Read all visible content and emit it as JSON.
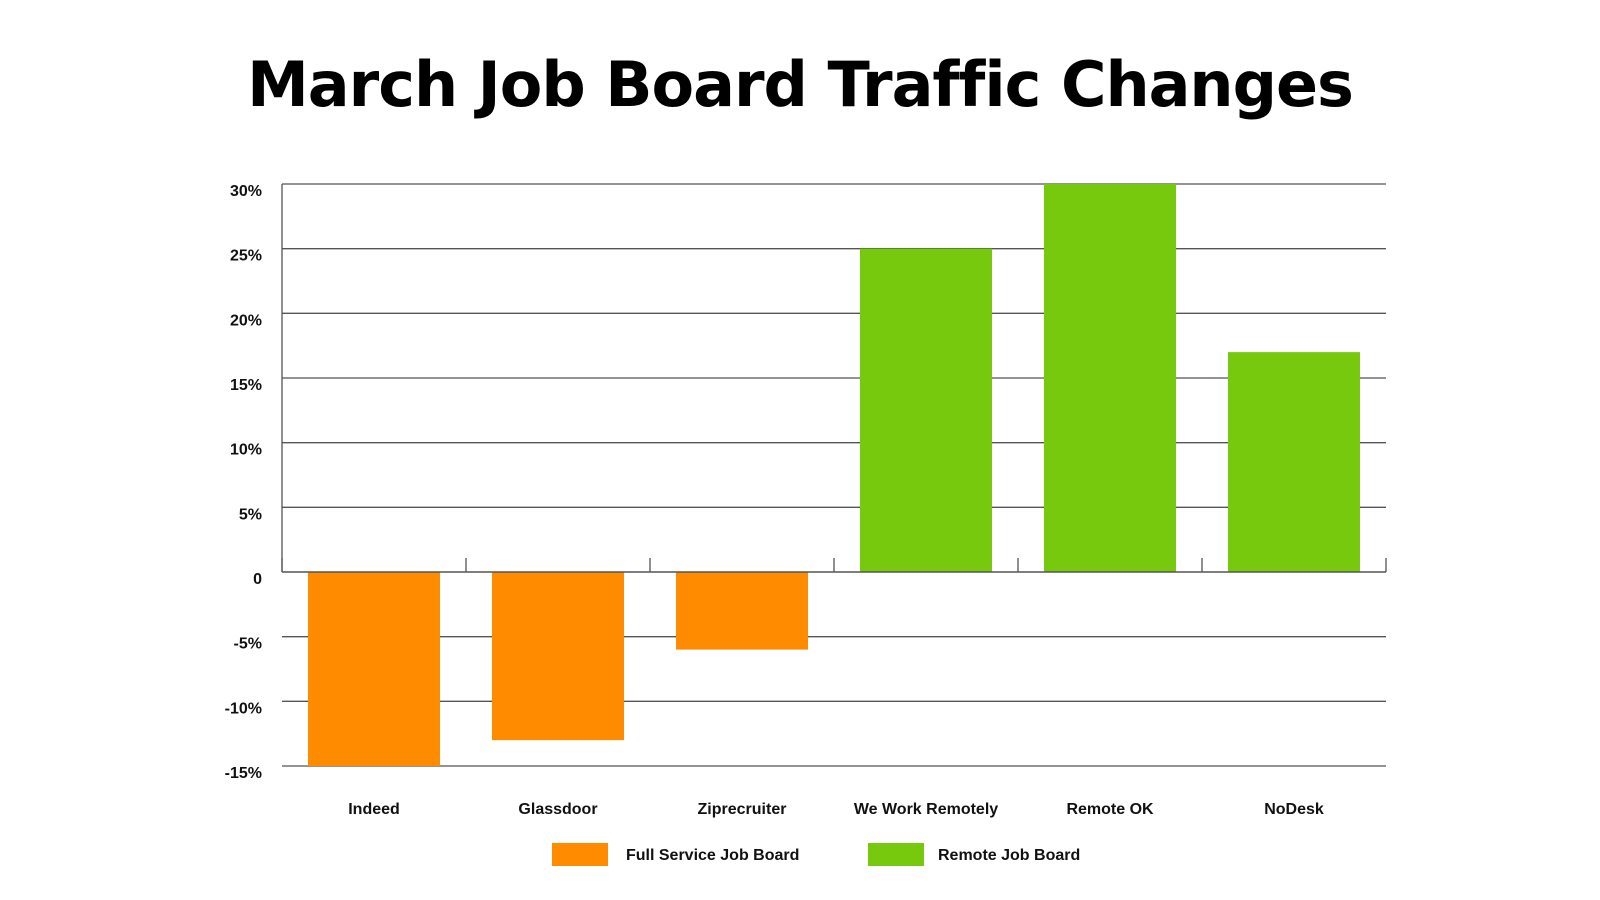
{
  "chart_data": {
    "type": "bar",
    "title": "March Job Board Traffic Changes",
    "xlabel": "",
    "ylabel": "",
    "categories": [
      "Indeed",
      "Glassdoor",
      "Ziprecruiter",
      "We Work Remotely",
      "Remote OK",
      "NoDesk"
    ],
    "values": [
      -15,
      -13,
      -6,
      25,
      30,
      17
    ],
    "groups": [
      "Full Service Job Board",
      "Full Service Job Board",
      "Full Service Job Board",
      "Remote Job Board",
      "Remote Job Board",
      "Remote Job Board"
    ],
    "ylim": [
      -15,
      30
    ],
    "yticks": [
      30,
      25,
      20,
      15,
      10,
      5,
      0,
      -5,
      -10,
      -15
    ],
    "ytick_labels": [
      "30%",
      "25%",
      "20%",
      "15%",
      "10%",
      "5%",
      "0",
      "-5%",
      "-10%",
      "-15%"
    ],
    "grid": true,
    "legend": {
      "placement": "bottom",
      "entries": [
        {
          "name": "Full Service Job Board",
          "color": "#FF8C00"
        },
        {
          "name": "Remote Job Board",
          "color": "#77C90E"
        }
      ]
    },
    "colors": {
      "Full Service Job Board": "#FF8C00",
      "Remote Job Board": "#77C90E",
      "grid": "#555555",
      "axis": "#555555"
    }
  }
}
